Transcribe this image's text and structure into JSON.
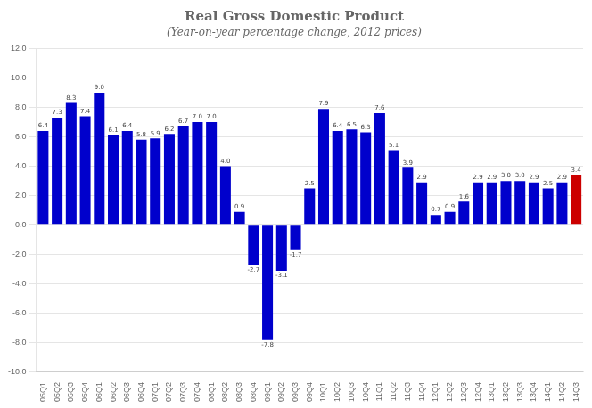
{
  "chart_data": {
    "type": "bar",
    "title": "Real Gross Domestic Product",
    "subtitle": "(Year-on-year percentage change, 2012 prices)",
    "categories": [
      "05Q1",
      "05Q2",
      "05Q3",
      "05Q4",
      "06Q1",
      "06Q2",
      "06Q3",
      "06Q4",
      "07Q1",
      "07Q2",
      "07Q3",
      "07Q4",
      "08Q1",
      "08Q2",
      "08Q3",
      "08Q4",
      "09Q1",
      "09Q2",
      "09Q3",
      "09Q4",
      "10Q1",
      "10Q2",
      "10Q3",
      "10Q4",
      "11Q1",
      "11Q2",
      "11Q3",
      "11Q4",
      "12Q1",
      "12Q2",
      "12Q3",
      "12Q4",
      "13Q1",
      "13Q2",
      "13Q3",
      "13Q4",
      "14Q1",
      "14Q2",
      "14Q3"
    ],
    "values": [
      6.4,
      7.3,
      8.3,
      7.4,
      9.0,
      6.1,
      6.4,
      5.8,
      5.9,
      6.2,
      6.7,
      7.0,
      7.0,
      4.0,
      0.9,
      -2.7,
      -7.8,
      -3.1,
      -1.7,
      2.5,
      7.9,
      6.4,
      6.5,
      6.3,
      7.6,
      5.1,
      3.9,
      2.9,
      0.7,
      0.9,
      1.6,
      2.9,
      2.9,
      3.0,
      3.0,
      2.9,
      2.5,
      2.9,
      3.4
    ],
    "value_labels": [
      "6.4",
      "7.3",
      "8.3",
      "7.4",
      "9.0",
      "6.1",
      "6.4",
      "5.8",
      "5.9",
      "6.2",
      "6.7",
      "7.0",
      "7.0",
      "4.0",
      "0.9",
      "-2.7",
      "-7.8",
      "-3.1",
      "-1.7",
      "2.5",
      "7.9",
      "6.4",
      "6.5",
      "6.3",
      "7.6",
      "5.1",
      "3.9",
      "2.9",
      "0.7",
      "0.9",
      "1.6",
      "2.9",
      "2.9",
      "3.0",
      "3.0",
      "2.9",
      "2.5",
      "2.9",
      "3.4"
    ],
    "colors": [
      "#0000cc",
      "#0000cc",
      "#0000cc",
      "#0000cc",
      "#0000cc",
      "#0000cc",
      "#0000cc",
      "#0000cc",
      "#0000cc",
      "#0000cc",
      "#0000cc",
      "#0000cc",
      "#0000cc",
      "#0000cc",
      "#0000cc",
      "#0000cc",
      "#0000cc",
      "#0000cc",
      "#0000cc",
      "#0000cc",
      "#0000cc",
      "#0000cc",
      "#0000cc",
      "#0000cc",
      "#0000cc",
      "#0000cc",
      "#0000cc",
      "#0000cc",
      "#0000cc",
      "#0000cc",
      "#0000cc",
      "#0000cc",
      "#0000cc",
      "#0000cc",
      "#0000cc",
      "#0000cc",
      "#0000cc",
      "#0000cc",
      "#cc0000"
    ],
    "ylim": [
      -10.0,
      12.0
    ],
    "yticks": [
      {
        "value": -10.0,
        "label": "-10.0"
      },
      {
        "value": -8.0,
        "label": "-8.0"
      },
      {
        "value": -6.0,
        "label": "-6.0"
      },
      {
        "value": -4.0,
        "label": "-4.0"
      },
      {
        "value": -2.0,
        "label": "-2.0"
      },
      {
        "value": 0.0,
        "label": "0.0"
      },
      {
        "value": 2.0,
        "label": "2.0"
      },
      {
        "value": 4.0,
        "label": "4.0"
      },
      {
        "value": 6.0,
        "label": "6.0"
      },
      {
        "value": 8.0,
        "label": "8.0"
      },
      {
        "value": 10.0,
        "label": "10.0"
      },
      {
        "value": 12.0,
        "label": "12.0"
      }
    ],
    "grid": true,
    "data_labels": true
  }
}
